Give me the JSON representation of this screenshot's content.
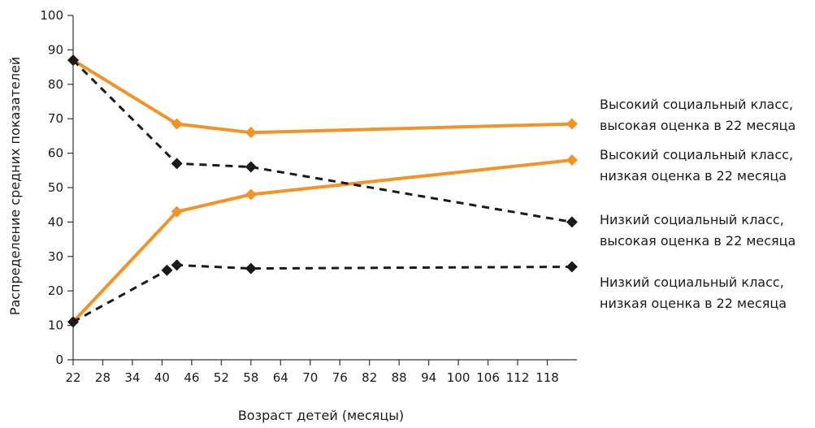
{
  "chart_data": {
    "type": "line",
    "xlabel": "Возраст детей (месяцы)",
    "ylabel": "Распределение средних показателей",
    "xlim": [
      22,
      124
    ],
    "ylim": [
      0,
      100
    ],
    "x_ticks": [
      "22",
      "28",
      "34",
      "40",
      "46",
      "52",
      "58",
      "64",
      "70",
      "76",
      "82",
      "88",
      "94",
      "100",
      "106",
      "112",
      "118"
    ],
    "x_tick_values": [
      22,
      28,
      34,
      40,
      46,
      52,
      58,
      64,
      70,
      76,
      82,
      88,
      94,
      100,
      106,
      112,
      118
    ],
    "y_ticks": [
      "0",
      "10",
      "20",
      "30",
      "40",
      "50",
      "60",
      "70",
      "80",
      "90",
      "100"
    ],
    "y_tick_values": [
      0,
      10,
      20,
      30,
      40,
      50,
      60,
      70,
      80,
      90,
      100
    ],
    "grid": false,
    "series": [
      {
        "name_lines": [
          "Высокий социальный класс,",
          "высокая оценка в 22 месяца"
        ],
        "color": "#f39325",
        "line_style": "solid",
        "marker": "diamond",
        "x": [
          22,
          43,
          58,
          123
        ],
        "y": [
          87,
          68.5,
          66,
          68.5
        ]
      },
      {
        "name_lines": [
          "Высокий социальный класс,",
          "низкая оценка в 22 месяца"
        ],
        "color": "#f39325",
        "line_style": "solid",
        "marker": "diamond",
        "x": [
          22,
          43,
          58,
          123
        ],
        "y": [
          11,
          43,
          48,
          58
        ]
      },
      {
        "name_lines": [
          "Низкий социальный класс,",
          "высокая оценка в 22 месяца"
        ],
        "color": "#1a1a1a",
        "line_style": "dashed",
        "marker": "diamond",
        "x": [
          22,
          43,
          58,
          123
        ],
        "y": [
          87,
          57,
          56,
          40
        ]
      },
      {
        "name_lines": [
          "Низкий социальный класс,",
          "низкая оценка в 22 месяца"
        ],
        "color": "#1a1a1a",
        "line_style": "dashed",
        "marker": "diamond",
        "x": [
          22,
          41,
          43,
          58,
          123
        ],
        "y": [
          11,
          26,
          27.5,
          26.5,
          27
        ]
      }
    ]
  }
}
